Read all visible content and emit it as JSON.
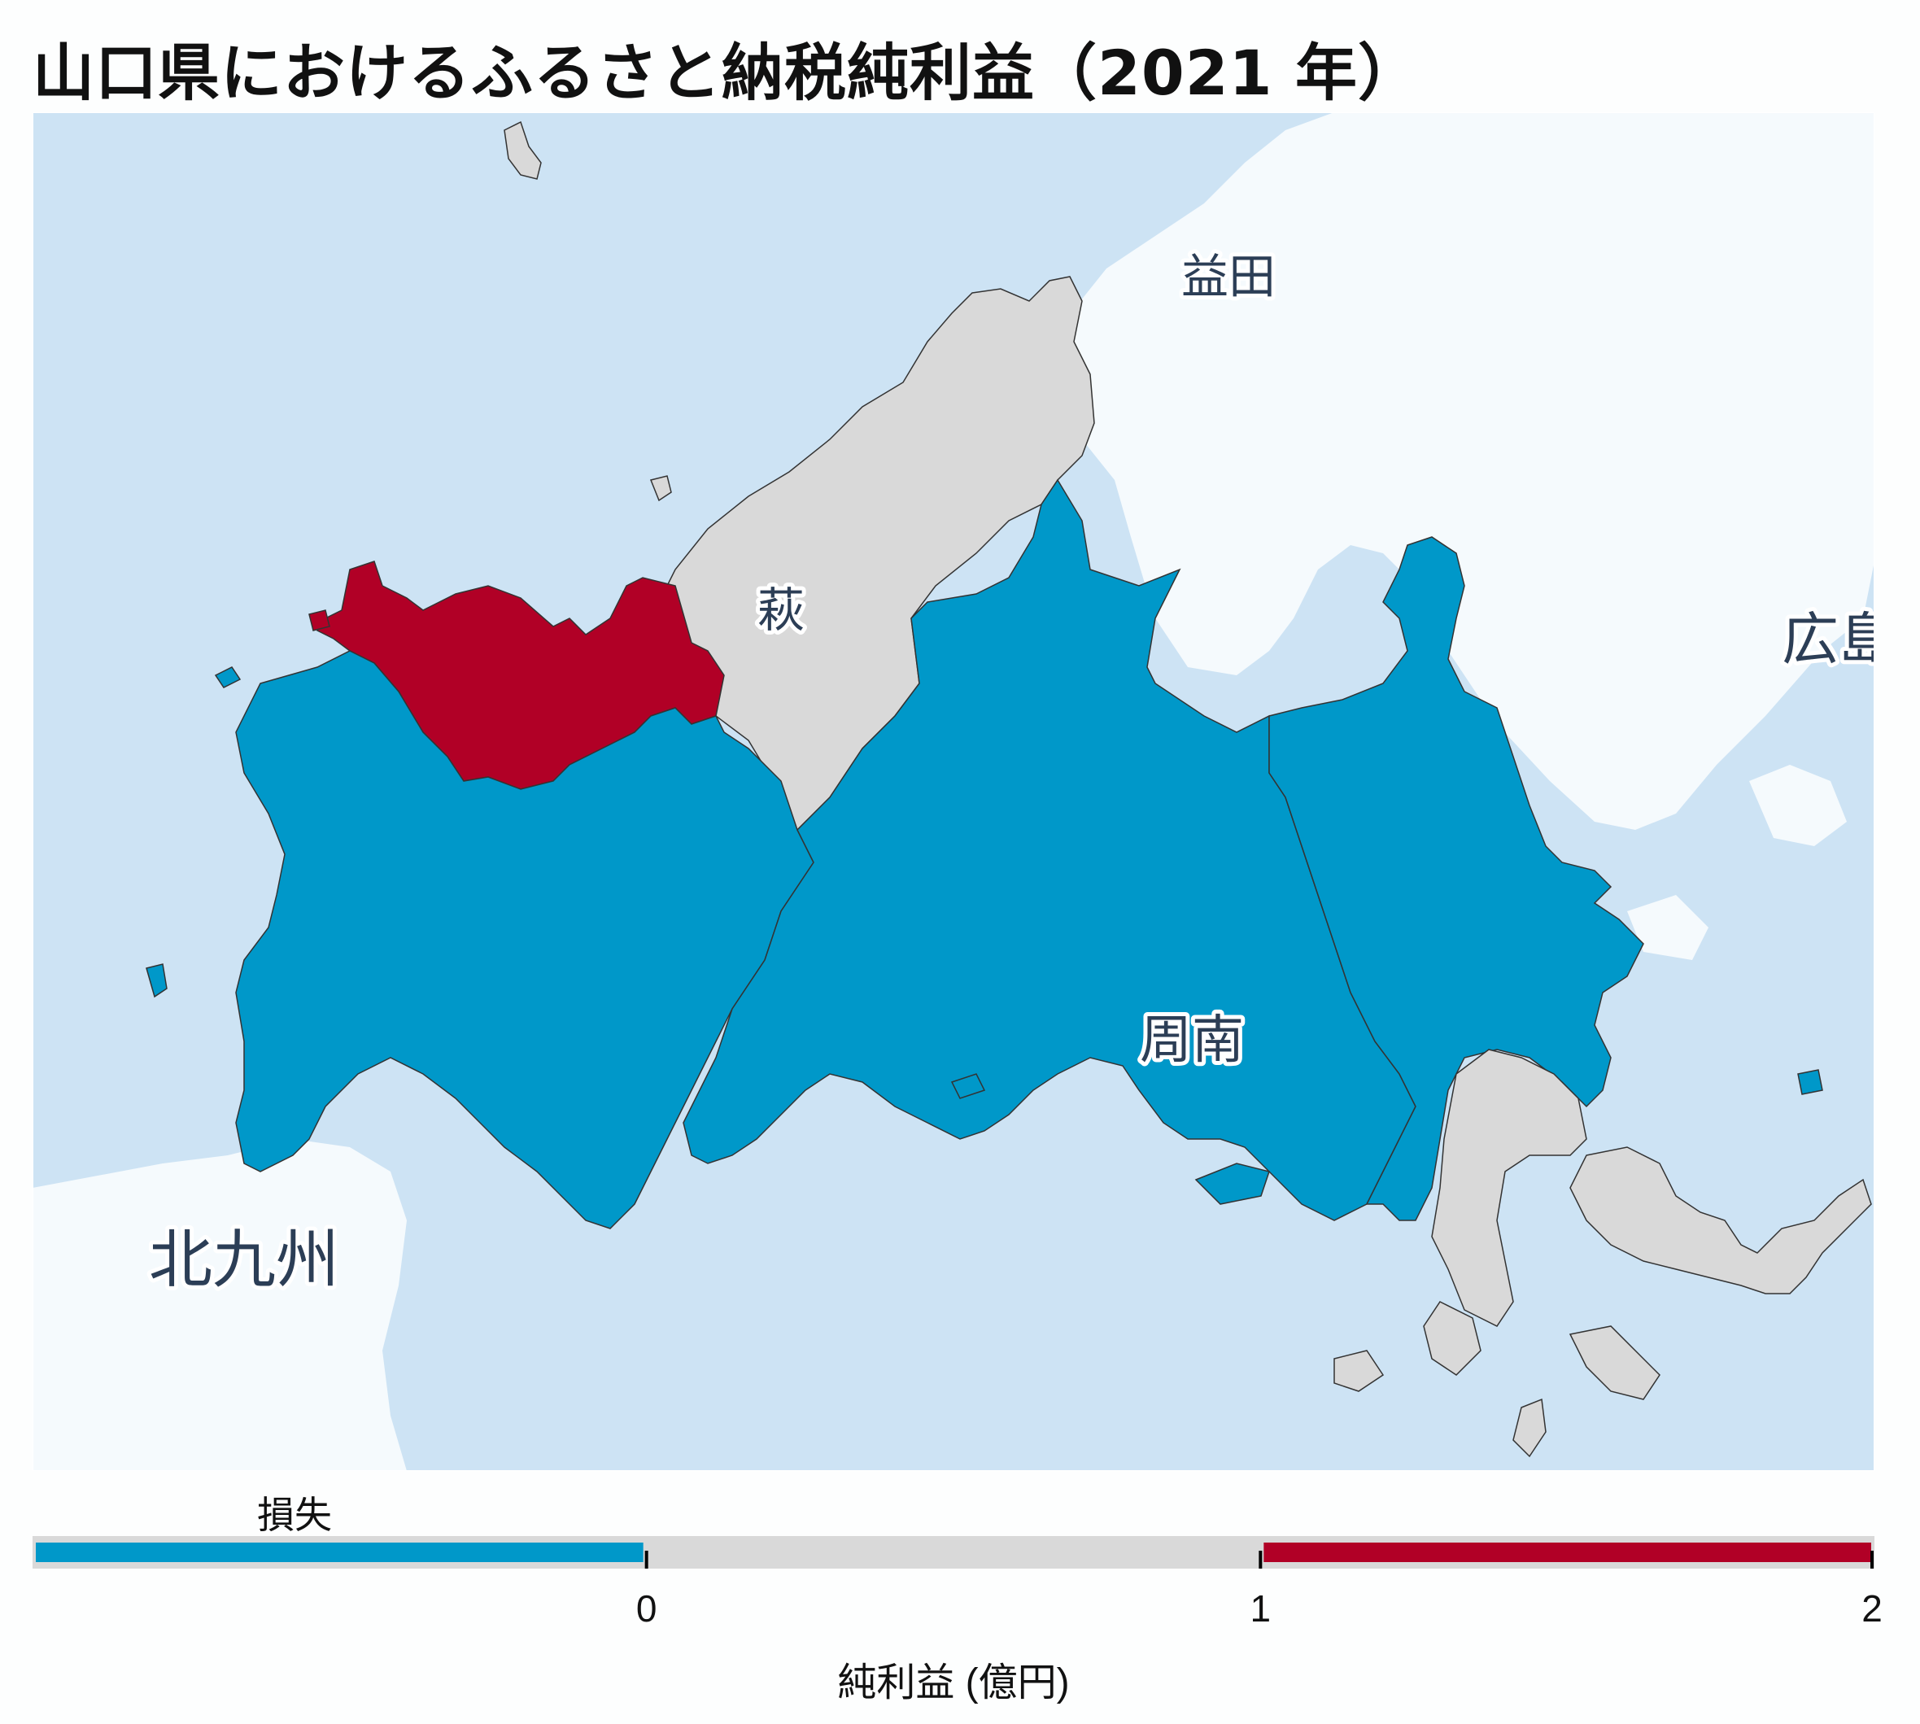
{
  "title": "山口県におけるふるさと納税純利益（2021 年）",
  "colors": {
    "sea": "#cde3f4",
    "land_outside": "#f5fafd",
    "loss": "#0098c9",
    "neutral": "#d9d9d9",
    "gain": "#b10026",
    "border": "#333333"
  },
  "map_labels": {
    "masuda": "益田",
    "hagi": "萩",
    "hiroshima": "広島",
    "shunan": "周南",
    "kitakyushu": "北九州"
  },
  "legend": {
    "loss_label": "損失",
    "ticks": [
      "0",
      "1",
      "2"
    ],
    "axis_label": "純利益 (億円)",
    "scale_min": -1,
    "scale_max": 2,
    "bins": [
      {
        "from": -1,
        "to": 0,
        "color": "#0098c9"
      },
      {
        "from": 0,
        "to": 1,
        "color": "#d9d9d9"
      },
      {
        "from": 1,
        "to": 2,
        "color": "#b10026"
      }
    ]
  },
  "regions": [
    {
      "id": "north-coast-grey",
      "category": "neutral"
    },
    {
      "id": "nagato-red",
      "category": "gain"
    },
    {
      "id": "west-blue",
      "category": "loss"
    },
    {
      "id": "central-blue",
      "category": "loss"
    },
    {
      "id": "east-blue",
      "category": "loss"
    },
    {
      "id": "southeast-grey",
      "category": "neutral"
    },
    {
      "id": "islands-grey",
      "category": "neutral"
    }
  ]
}
